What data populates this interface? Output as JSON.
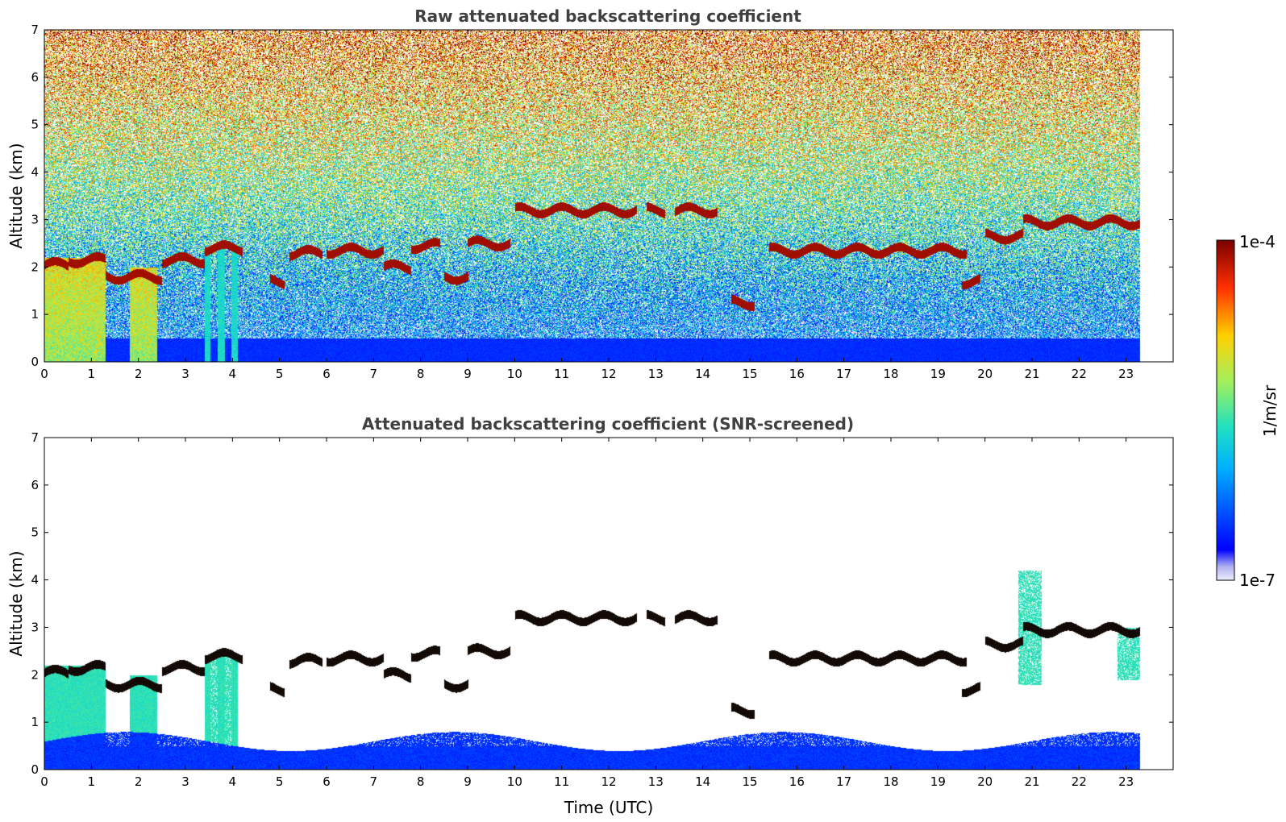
{
  "chart_data": [
    {
      "type": "heatmap",
      "title": "Raw attenuated backscattering coefficient",
      "xlabel": "",
      "ylabel": "Altitude (km)",
      "xlim": [
        0,
        24
      ],
      "ylim": [
        0,
        7
      ],
      "x_ticks": [
        "0",
        "1",
        "2",
        "3",
        "4",
        "5",
        "6",
        "7",
        "8",
        "9",
        "10",
        "11",
        "12",
        "13",
        "14",
        "15",
        "16",
        "17",
        "18",
        "19",
        "20",
        "21",
        "22",
        "23"
      ],
      "y_ticks": [
        "0",
        "1",
        "2",
        "3",
        "4",
        "5",
        "6",
        "7"
      ],
      "data_extent_hours": 23.3,
      "screened": false,
      "cloud_layers": [
        {
          "t": [
            0.0,
            0.5
          ],
          "alt": 2.05
        },
        {
          "t": [
            0.5,
            1.3
          ],
          "alt": 2.15
        },
        {
          "t": [
            1.3,
            2.5
          ],
          "alt": 1.8
        },
        {
          "t": [
            2.5,
            3.4
          ],
          "alt": 2.15
        },
        {
          "t": [
            3.4,
            4.2
          ],
          "alt": 2.4
        },
        {
          "t": [
            4.8,
            5.1
          ],
          "alt": 1.7
        },
        {
          "t": [
            5.2,
            5.9
          ],
          "alt": 2.3
        },
        {
          "t": [
            6.0,
            7.2
          ],
          "alt": 2.35
        },
        {
          "t": [
            7.2,
            7.8
          ],
          "alt": 2.0
        },
        {
          "t": [
            7.8,
            8.4
          ],
          "alt": 2.45
        },
        {
          "t": [
            8.5,
            9.0
          ],
          "alt": 1.8
        },
        {
          "t": [
            9.0,
            9.9
          ],
          "alt": 2.5
        },
        {
          "t": [
            10.0,
            12.6
          ],
          "alt": 3.2
        },
        {
          "t": [
            12.8,
            13.2
          ],
          "alt": 3.2
        },
        {
          "t": [
            13.4,
            14.3
          ],
          "alt": 3.2
        },
        {
          "t": [
            14.6,
            15.1
          ],
          "alt": 1.25
        },
        {
          "t": [
            15.4,
            19.6
          ],
          "alt": 2.35
        },
        {
          "t": [
            19.5,
            19.9
          ],
          "alt": 1.7
        },
        {
          "t": [
            20.0,
            20.8
          ],
          "alt": 2.65
        },
        {
          "t": [
            20.8,
            23.3
          ],
          "alt": 2.95
        }
      ]
    },
    {
      "type": "heatmap",
      "title": "Attenuated backscattering coefficient (SNR-screened)",
      "xlabel": "Time (UTC)",
      "ylabel": "Altitude (km)",
      "xlim": [
        0,
        24
      ],
      "ylim": [
        0,
        7
      ],
      "x_ticks": [
        "0",
        "1",
        "2",
        "3",
        "4",
        "5",
        "6",
        "7",
        "8",
        "9",
        "10",
        "11",
        "12",
        "13",
        "14",
        "15",
        "16",
        "17",
        "18",
        "19",
        "20",
        "21",
        "22",
        "23"
      ],
      "y_ticks": [
        "0",
        "1",
        "2",
        "3",
        "4",
        "5",
        "6",
        "7"
      ],
      "data_extent_hours": 23.3,
      "screened": true
    }
  ],
  "colorbar": {
    "label": "1/m/sr",
    "max_label": "1e-4",
    "min_label": "1e-7",
    "scale": "log",
    "colormap": "jet"
  },
  "colors": {
    "title": "#404040",
    "cloud": "#8b0000"
  }
}
